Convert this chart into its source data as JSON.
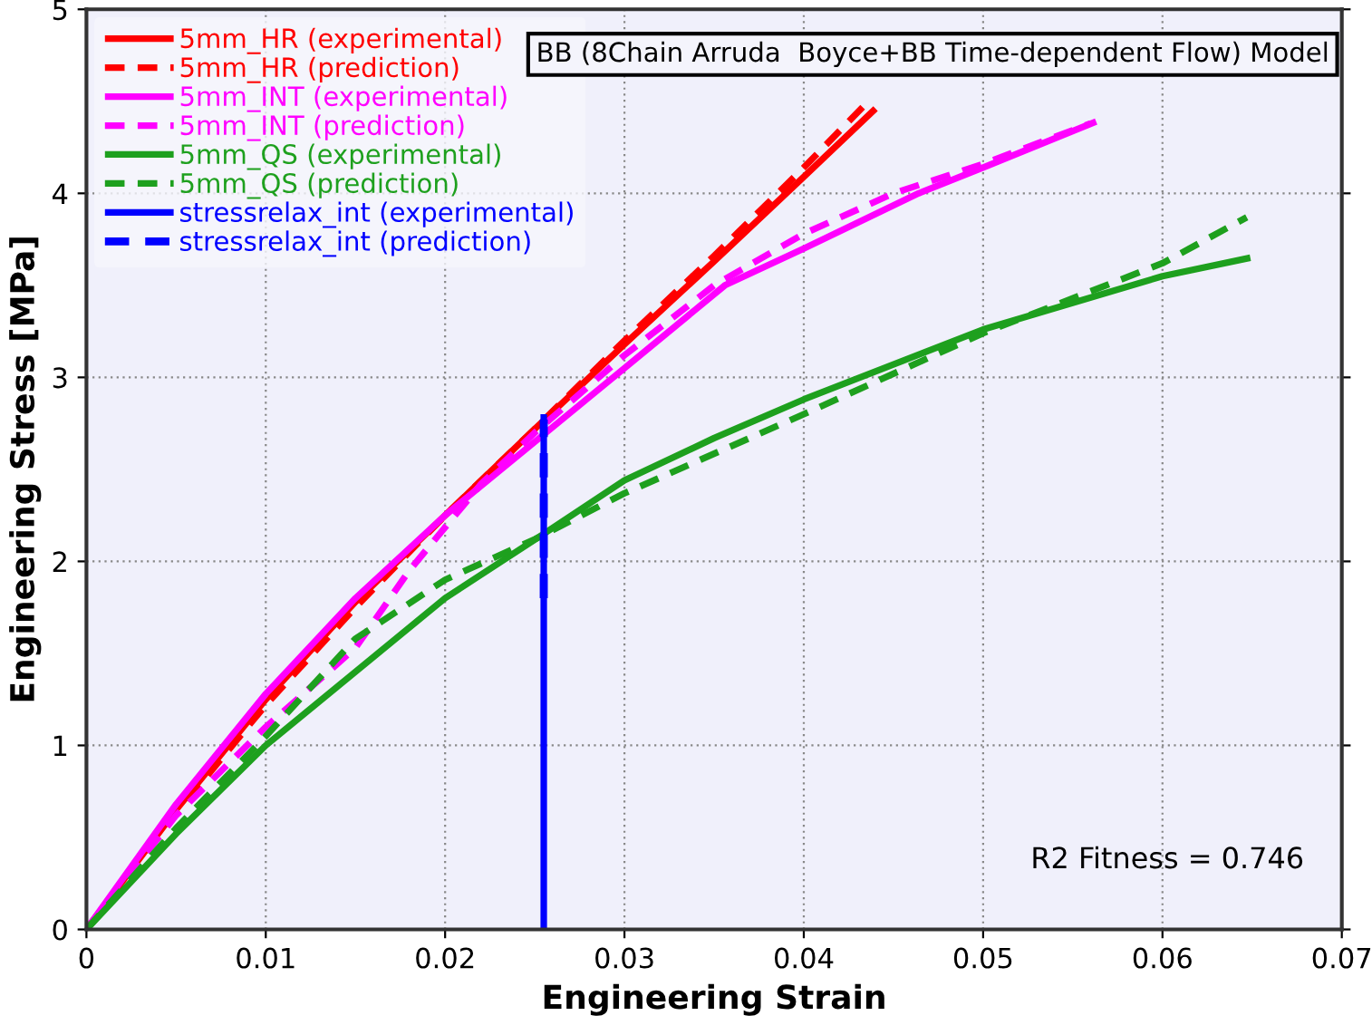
{
  "chart_data": {
    "type": "line",
    "xlabel": "Engineering Strain",
    "ylabel": "Engineering Stress [MPa]",
    "xlim": [
      0,
      0.07
    ],
    "ylim": [
      0,
      5
    ],
    "xticks": [
      0,
      0.01,
      0.02,
      0.03,
      0.04,
      0.05,
      0.06,
      0.07
    ],
    "yticks": [
      0,
      1,
      2,
      3,
      4,
      5
    ],
    "grid": true,
    "legend": "top left",
    "marker": "none",
    "annotations": [
      "BB (8Chain Arruda  Boyce+BB Time-dependent Flow) Model",
      "R2 Fitness = 0.746"
    ],
    "series": [
      {
        "name": "5mm_HR (experimental)",
        "color": "#ff0000",
        "line_style": "solid",
        "x": [
          0,
          0.005,
          0.01,
          0.015,
          0.02,
          0.025,
          0.03,
          0.035,
          0.04,
          0.044
        ],
        "values": [
          0,
          0.65,
          1.25,
          1.78,
          2.25,
          2.72,
          3.18,
          3.63,
          4.09,
          4.46
        ]
      },
      {
        "name": "5mm_HR (prediction)",
        "color": "#ff0000",
        "line_style": "dashed",
        "x": [
          0,
          0.005,
          0.01,
          0.015,
          0.02,
          0.025,
          0.03,
          0.035,
          0.04,
          0.0434
        ],
        "values": [
          0,
          0.63,
          1.22,
          1.75,
          2.25,
          2.72,
          3.2,
          3.66,
          4.14,
          4.48
        ]
      },
      {
        "name": "5mm_INT (experimental)",
        "color": "#ff00ff",
        "line_style": "solid",
        "x": [
          0,
          0.005,
          0.01,
          0.015,
          0.02,
          0.025,
          0.03,
          0.0356,
          0.04,
          0.0464,
          0.05,
          0.0563
        ],
        "values": [
          0,
          0.68,
          1.28,
          1.8,
          2.25,
          2.65,
          3.05,
          3.5,
          3.7,
          4.0,
          4.14,
          4.39
        ]
      },
      {
        "name": "5mm_INT (prediction)",
        "color": "#ff00ff",
        "line_style": "dashed",
        "x": [
          0,
          0.005,
          0.01,
          0.015,
          0.018,
          0.022,
          0.025,
          0.03,
          0.035,
          0.04,
          0.045,
          0.05,
          0.056
        ],
        "values": [
          0,
          0.62,
          1.1,
          1.53,
          1.95,
          2.42,
          2.7,
          3.12,
          3.5,
          3.78,
          4.0,
          4.16,
          4.38
        ]
      },
      {
        "name": "5mm_QS (experimental)",
        "color": "#1ea01e",
        "line_style": "solid",
        "x": [
          0,
          0.005,
          0.01,
          0.015,
          0.02,
          0.0255,
          0.03,
          0.035,
          0.04,
          0.05,
          0.06,
          0.0649
        ],
        "values": [
          0,
          0.52,
          1.0,
          1.4,
          1.8,
          2.15,
          2.44,
          2.67,
          2.88,
          3.26,
          3.55,
          3.65
        ]
      },
      {
        "name": "5mm_QS (prediction)",
        "color": "#1ea01e",
        "line_style": "dashed",
        "x": [
          0,
          0.005,
          0.01,
          0.015,
          0.02,
          0.025,
          0.03,
          0.04,
          0.05,
          0.06,
          0.0647
        ],
        "values": [
          0,
          0.55,
          1.05,
          1.58,
          1.9,
          2.12,
          2.37,
          2.8,
          3.24,
          3.62,
          3.87
        ]
      },
      {
        "name": "stressrelax_int (experimental)",
        "color": "#0000ff",
        "line_style": "solid",
        "x": [
          0.0255,
          0.0255
        ],
        "values": [
          0,
          2.8
        ]
      },
      {
        "name": "stressrelax_int (prediction)",
        "color": "#0000ff",
        "line_style": "dashed",
        "x": [
          0.0255,
          0.0255
        ],
        "values": [
          1.8,
          2.77
        ]
      }
    ]
  }
}
